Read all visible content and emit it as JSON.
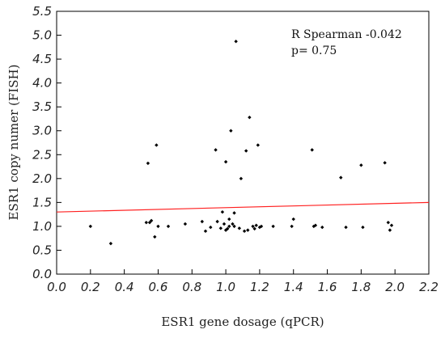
{
  "chart_data": {
    "type": "scatter",
    "xlabel": "ESR1 gene dosage (qPCR)",
    "ylabel": "ESR1 copy numer (FISH)",
    "xlim": [
      0.0,
      2.2
    ],
    "ylim": [
      0.0,
      5.5
    ],
    "x_ticks": [
      "0.0",
      "0.2",
      "0.4",
      "0.6",
      "0.8",
      "1.0",
      "1.2",
      "1.4",
      "1.6",
      "1.8",
      "2.0",
      "2.2"
    ],
    "y_ticks": [
      "0.0",
      "0.5",
      "1.0",
      "1.5",
      "2.0",
      "2.5",
      "3.0",
      "3.5",
      "4.0",
      "4.5",
      "5.0",
      "5.5"
    ],
    "grid": false,
    "annotations": [
      "R Spearman -0.042",
      "p= 0.75"
    ],
    "points_color": "#000000",
    "regression_color": "#ff2020",
    "regression_line": {
      "x": [
        0.0,
        2.2
      ],
      "y": [
        1.3,
        1.5
      ]
    },
    "points": [
      {
        "x": 0.2,
        "y": 1.0
      },
      {
        "x": 0.32,
        "y": 0.64
      },
      {
        "x": 0.53,
        "y": 1.08
      },
      {
        "x": 0.54,
        "y": 2.32
      },
      {
        "x": 0.55,
        "y": 1.08
      },
      {
        "x": 0.56,
        "y": 1.12
      },
      {
        "x": 0.58,
        "y": 0.78
      },
      {
        "x": 0.59,
        "y": 2.7
      },
      {
        "x": 0.6,
        "y": 1.0
      },
      {
        "x": 0.66,
        "y": 1.0
      },
      {
        "x": 0.76,
        "y": 1.05
      },
      {
        "x": 0.86,
        "y": 1.1
      },
      {
        "x": 0.88,
        "y": 0.9
      },
      {
        "x": 0.91,
        "y": 0.98
      },
      {
        "x": 0.94,
        "y": 2.6
      },
      {
        "x": 0.95,
        "y": 1.1
      },
      {
        "x": 0.97,
        "y": 0.96
      },
      {
        "x": 0.98,
        "y": 1.3
      },
      {
        "x": 0.99,
        "y": 1.05
      },
      {
        "x": 1.0,
        "y": 2.35
      },
      {
        "x": 1.0,
        "y": 0.92
      },
      {
        "x": 1.01,
        "y": 0.95
      },
      {
        "x": 1.02,
        "y": 1.15
      },
      {
        "x": 1.02,
        "y": 1.0
      },
      {
        "x": 1.03,
        "y": 3.0
      },
      {
        "x": 1.04,
        "y": 1.05
      },
      {
        "x": 1.05,
        "y": 1.28
      },
      {
        "x": 1.05,
        "y": 1.0
      },
      {
        "x": 1.06,
        "y": 4.87
      },
      {
        "x": 1.08,
        "y": 0.96
      },
      {
        "x": 1.09,
        "y": 2.0
      },
      {
        "x": 1.11,
        "y": 0.9
      },
      {
        "x": 1.12,
        "y": 2.58
      },
      {
        "x": 1.13,
        "y": 0.92
      },
      {
        "x": 1.14,
        "y": 3.28
      },
      {
        "x": 1.16,
        "y": 1.0
      },
      {
        "x": 1.17,
        "y": 0.95
      },
      {
        "x": 1.18,
        "y": 1.02
      },
      {
        "x": 1.19,
        "y": 2.7
      },
      {
        "x": 1.2,
        "y": 0.98
      },
      {
        "x": 1.21,
        "y": 1.0
      },
      {
        "x": 1.28,
        "y": 1.0
      },
      {
        "x": 1.39,
        "y": 1.0
      },
      {
        "x": 1.4,
        "y": 1.15
      },
      {
        "x": 1.51,
        "y": 2.6
      },
      {
        "x": 1.52,
        "y": 1.0
      },
      {
        "x": 1.53,
        "y": 1.02
      },
      {
        "x": 1.57,
        "y": 0.98
      },
      {
        "x": 1.68,
        "y": 2.02
      },
      {
        "x": 1.71,
        "y": 0.98
      },
      {
        "x": 1.8,
        "y": 2.28
      },
      {
        "x": 1.81,
        "y": 0.98
      },
      {
        "x": 1.94,
        "y": 2.33
      },
      {
        "x": 1.96,
        "y": 1.08
      },
      {
        "x": 1.97,
        "y": 0.92
      },
      {
        "x": 1.98,
        "y": 1.02
      }
    ]
  }
}
